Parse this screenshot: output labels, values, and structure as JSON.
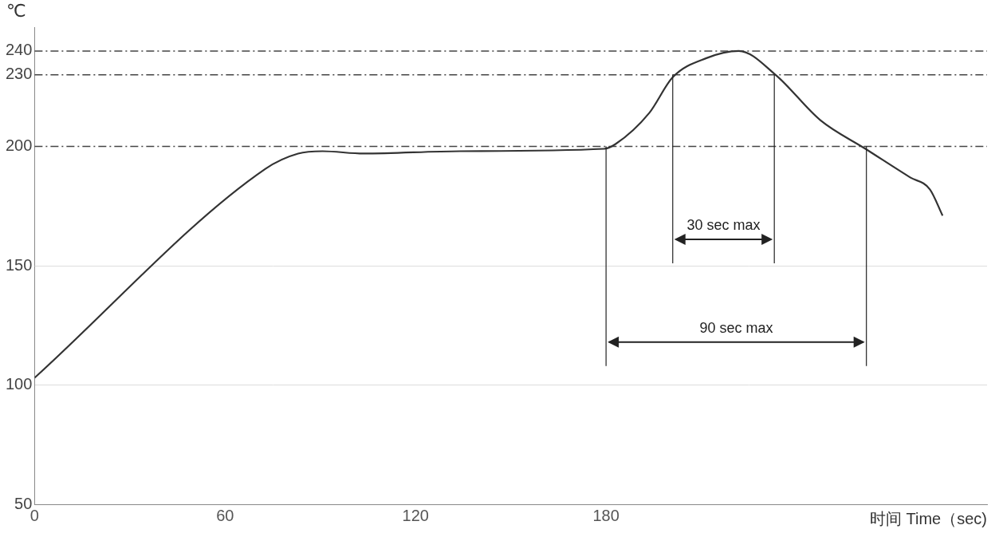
{
  "chart_data": {
    "type": "line",
    "x_label": "时间 Time（sec)",
    "y_label": "℃",
    "x": [
      0,
      72.7,
      83,
      90.7,
      103.6,
      134,
      179.4,
      183,
      193.6,
      201,
      211.6,
      221.8,
      233.4,
      247.5,
      261.7,
      275.8,
      282,
      286
    ],
    "values": [
      103,
      190.6,
      197,
      198,
      197,
      198,
      199,
      201,
      214,
      229,
      237,
      240,
      230,
      211,
      199,
      187,
      182,
      171
    ],
    "color": "#333333",
    "xlim": [
      0,
      300
    ],
    "xticks": [
      0,
      60,
      120,
      180
    ],
    "ylim": [
      50,
      250
    ],
    "yticks": [
      50,
      100,
      150,
      200,
      230,
      240
    ],
    "grid": true,
    "reference_lines": [
      200,
      230,
      240
    ],
    "annotations": [
      {
        "text": "30 sec max",
        "x": [
          201,
          233
        ],
        "y": 161,
        "level": 230
      },
      {
        "text": "90 sec max",
        "x": [
          180,
          262
        ],
        "y": 118,
        "level": 200
      }
    ]
  }
}
